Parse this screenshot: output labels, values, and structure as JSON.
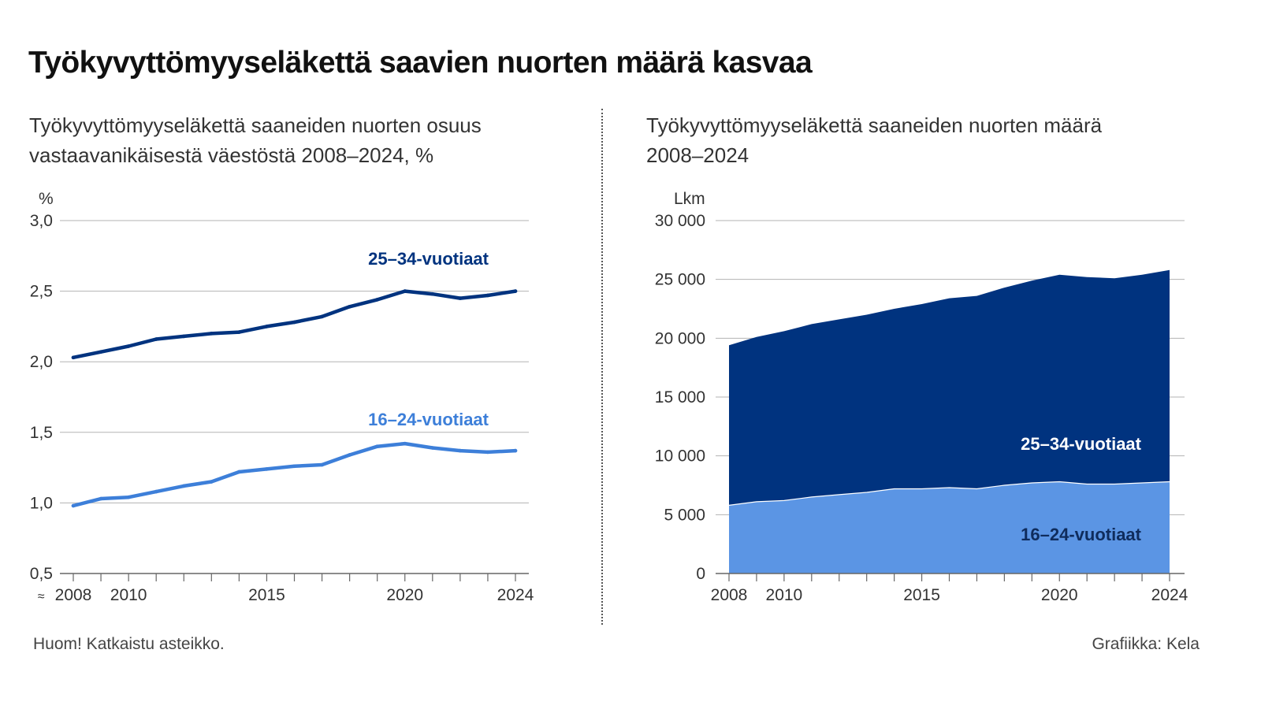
{
  "page_title": "Työkyvyttömyyseläkettä saavien nuorten määrä kasvaa",
  "footnote": "Huom! Katkaistu asteikko.",
  "credit": "Grafiikka: Kela",
  "colors": {
    "dark_blue": "#00337f",
    "light_blue": "#3d7fd9",
    "area_light": "#5b95e4",
    "grid": "#b3b3b3",
    "axis": "#666666",
    "text": "#333333"
  },
  "chart_data": [
    {
      "type": "line",
      "title": "Työkyvyttömyyseläkettä saaneiden nuorten osuus",
      "subtitle": "vastaavanikäisestä väestöstä 2008–2024, %",
      "ylabel": "%",
      "xlabel": "",
      "ylim": [
        0.5,
        3.0
      ],
      "yticks": [
        0.5,
        1.0,
        1.5,
        2.0,
        2.5,
        3.0
      ],
      "ytick_labels": [
        "0,5",
        "1,0",
        "1,5",
        "2,0",
        "2,5",
        "3,0"
      ],
      "xticks": [
        2008,
        2010,
        2015,
        2020,
        2024
      ],
      "xtick_labels": [
        "2008",
        "2010",
        "2015",
        "2020",
        "2024"
      ],
      "axis_break": true,
      "axis_break_symbol": "≈",
      "grid": true,
      "x": [
        2008,
        2009,
        2010,
        2011,
        2012,
        2013,
        2014,
        2015,
        2016,
        2017,
        2018,
        2019,
        2020,
        2021,
        2022,
        2023,
        2024
      ],
      "series": [
        {
          "name": "25–34-vuotiaat",
          "color": "#00337f",
          "values": [
            2.03,
            2.07,
            2.11,
            2.16,
            2.18,
            2.2,
            2.21,
            2.25,
            2.28,
            2.32,
            2.39,
            2.44,
            2.5,
            2.48,
            2.45,
            2.47,
            2.5
          ]
        },
        {
          "name": "16–24-vuotiaat",
          "color": "#3d7fd9",
          "values": [
            0.98,
            1.03,
            1.04,
            1.08,
            1.12,
            1.15,
            1.22,
            1.24,
            1.26,
            1.27,
            1.34,
            1.4,
            1.42,
            1.39,
            1.37,
            1.36,
            1.37
          ]
        }
      ]
    },
    {
      "type": "area",
      "stacked": true,
      "title": "Työkyvyttömyyseläkettä saaneiden nuorten määrä",
      "subtitle": "2008–2024",
      "ylabel": "Lkm",
      "xlabel": "",
      "ylim": [
        0,
        30000
      ],
      "yticks": [
        0,
        5000,
        10000,
        15000,
        20000,
        25000,
        30000
      ],
      "ytick_labels": [
        "0",
        "5 000",
        "10 000",
        "15 000",
        "20 000",
        "25 000",
        "30 000"
      ],
      "xticks": [
        2008,
        2010,
        2015,
        2020,
        2024
      ],
      "xtick_labels": [
        "2008",
        "2010",
        "2015",
        "2020",
        "2024"
      ],
      "grid": true,
      "x": [
        2008,
        2009,
        2010,
        2011,
        2012,
        2013,
        2014,
        2015,
        2016,
        2017,
        2018,
        2019,
        2020,
        2021,
        2022,
        2023,
        2024
      ],
      "series": [
        {
          "name": "16–24-vuotiaat",
          "color": "#5b95e4",
          "label_color": "#0f2c5c",
          "values": [
            5800,
            6100,
            6200,
            6500,
            6700,
            6900,
            7200,
            7200,
            7300,
            7200,
            7500,
            7700,
            7800,
            7600,
            7600,
            7700,
            7800
          ]
        },
        {
          "name": "25–34-vuotiaat",
          "color": "#00337f",
          "label_color": "#ffffff",
          "values": [
            13600,
            14000,
            14400,
            14700,
            14900,
            15100,
            15300,
            15700,
            16100,
            16400,
            16800,
            17200,
            17600,
            17600,
            17500,
            17700,
            18000
          ]
        }
      ]
    }
  ]
}
